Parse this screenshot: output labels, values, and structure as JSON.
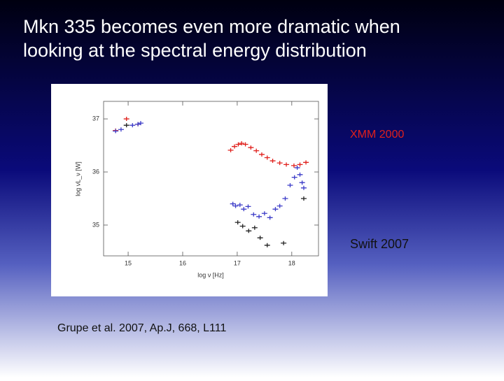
{
  "slide": {
    "title_lines": [
      " Mkn 335 becomes even more dramatic when",
      "looking at the spectral energy distribution"
    ],
    "caption": "Grupe et al. 2007, Ap.J, 668, L111"
  },
  "chart_data": {
    "type": "scatter",
    "x_label": "log ν [Hz]",
    "y_label": "log νL_ν [W]",
    "xlim": [
      14.55,
      18.49
    ],
    "ylim": [
      34.42,
      37.33
    ],
    "xticks": [
      15,
      16,
      17,
      18
    ],
    "yticks": [
      35,
      36,
      37
    ],
    "series": [
      {
        "name": "XMM 2000",
        "color": "#e0201c",
        "x": [
          14.77,
          14.97,
          15.18,
          16.88,
          16.95,
          17.02,
          17.08,
          17.15,
          17.25,
          17.35,
          17.45,
          17.55,
          17.65,
          17.78,
          17.9,
          18.04,
          18.15,
          18.26
        ],
        "values": [
          36.78,
          37.0,
          36.9,
          36.41,
          36.48,
          36.52,
          36.54,
          36.52,
          36.46,
          36.4,
          36.33,
          36.27,
          36.21,
          36.17,
          36.14,
          36.12,
          36.14,
          36.18
        ]
      },
      {
        "name": "Swift 2007",
        "color": "#3b3bc8",
        "x": [
          14.77,
          14.87,
          15.08,
          15.18,
          15.23,
          16.92,
          16.97,
          17.05,
          17.12,
          17.2,
          17.3,
          17.4,
          17.5,
          17.6,
          17.7,
          17.78,
          17.88,
          17.97,
          18.05,
          18.1,
          18.15,
          18.19,
          18.22
        ],
        "values": [
          36.77,
          36.8,
          36.88,
          36.9,
          36.92,
          35.4,
          35.36,
          35.38,
          35.3,
          35.35,
          35.2,
          35.16,
          35.22,
          35.14,
          35.3,
          35.36,
          35.5,
          35.75,
          35.9,
          36.08,
          35.95,
          35.8,
          35.7
        ]
      },
      {
        "color": "#222222",
        "x": [
          14.97,
          17.01,
          17.1,
          17.21,
          17.32,
          17.42,
          17.55,
          17.85,
          18.22
        ],
        "values": [
          36.88,
          35.05,
          34.98,
          34.89,
          34.95,
          34.76,
          34.62,
          34.66,
          35.5
        ]
      }
    ]
  }
}
